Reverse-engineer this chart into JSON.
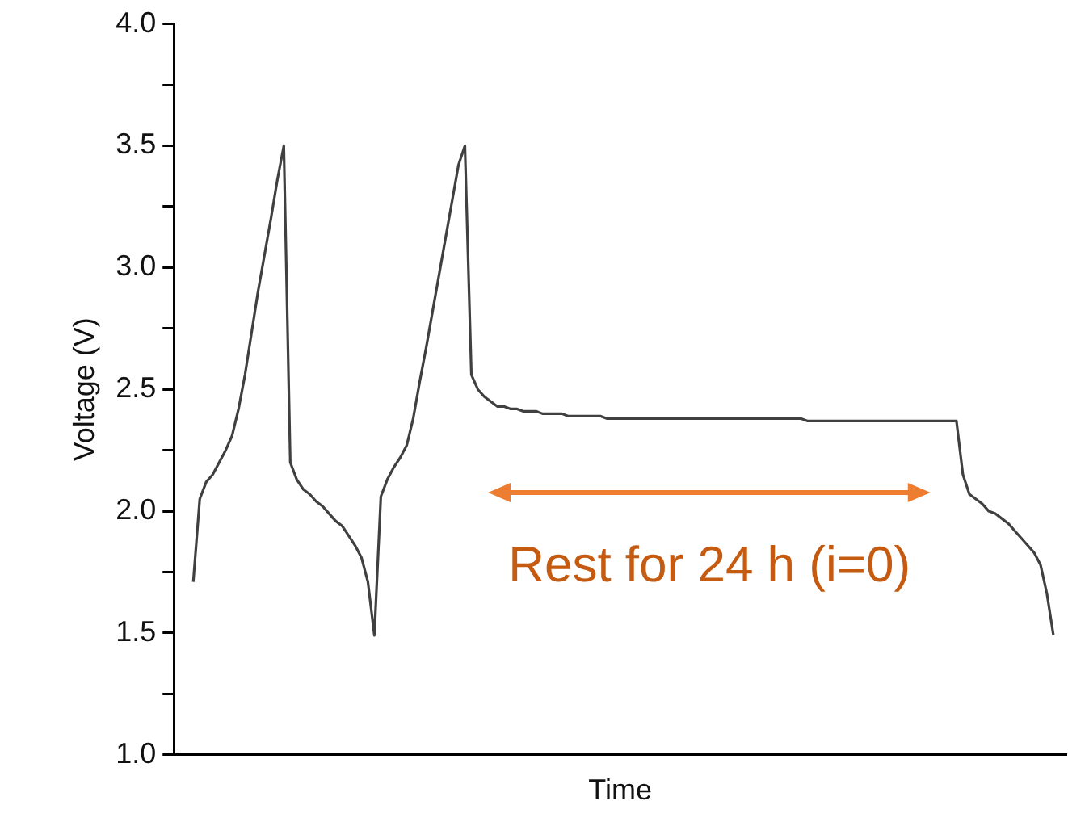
{
  "chart_data": {
    "type": "line",
    "xlabel": "Time",
    "ylabel": "Voltage (V)",
    "categories": [
      null,
      null,
      null,
      null,
      null,
      null,
      null,
      null,
      null,
      null,
      null,
      null,
      null,
      null,
      null,
      null,
      null,
      null,
      null,
      null,
      null,
      null,
      null,
      null,
      null,
      null,
      null,
      null,
      null,
      null,
      null,
      null,
      null,
      null,
      null,
      null,
      null,
      null,
      null,
      null,
      null,
      null,
      null,
      null,
      null,
      null,
      null,
      null,
      null,
      null,
      null,
      null,
      null,
      null,
      null,
      null,
      null,
      null,
      null,
      null,
      null,
      null,
      null,
      null,
      null,
      null,
      null,
      null,
      null,
      null,
      null,
      null,
      null,
      null,
      null,
      null,
      null,
      null,
      null,
      null,
      null,
      null,
      null,
      null,
      null,
      null,
      null,
      null,
      null,
      null,
      null,
      null,
      null,
      null,
      null,
      null,
      null,
      null,
      null,
      null,
      null,
      null,
      null,
      null,
      null,
      null,
      null,
      null,
      null,
      null,
      null,
      null,
      null,
      null,
      null,
      null,
      null,
      null,
      null,
      null,
      null,
      null,
      null,
      null,
      null,
      null,
      null,
      null,
      null,
      null,
      null,
      null,
      null,
      null,
      null,
      null,
      null,
      null,
      null
    ],
    "series": [
      {
        "color": "#404040",
        "values": [
          null,
          null,
          null,
          1.71,
          2.05,
          2.12,
          2.15,
          2.2,
          2.25,
          2.31,
          2.42,
          2.56,
          2.73,
          2.9,
          3.05,
          3.2,
          3.36,
          3.5,
          2.2,
          2.13,
          2.09,
          2.07,
          2.04,
          2.02,
          1.99,
          1.96,
          1.94,
          1.9,
          1.86,
          1.81,
          1.71,
          1.49,
          2.06,
          2.13,
          2.18,
          2.22,
          2.27,
          2.38,
          2.53,
          2.67,
          2.82,
          2.97,
          3.12,
          3.27,
          3.42,
          3.5,
          2.56,
          2.5,
          2.47,
          2.45,
          2.43,
          2.43,
          2.42,
          2.42,
          2.41,
          2.41,
          2.41,
          2.4,
          2.4,
          2.4,
          2.4,
          2.39,
          2.39,
          2.39,
          2.39,
          2.39,
          2.39,
          2.38,
          2.38,
          2.38,
          2.38,
          2.38,
          2.38,
          2.38,
          2.38,
          2.38,
          2.38,
          2.38,
          2.38,
          2.38,
          2.38,
          2.38,
          2.38,
          2.38,
          2.38,
          2.38,
          2.38,
          2.38,
          2.38,
          2.38,
          2.38,
          2.38,
          2.38,
          2.38,
          2.38,
          2.38,
          2.38,
          2.38,
          2.37,
          2.37,
          2.37,
          2.37,
          2.37,
          2.37,
          2.37,
          2.37,
          2.37,
          2.37,
          2.37,
          2.37,
          2.37,
          2.37,
          2.37,
          2.37,
          2.37,
          2.37,
          2.37,
          2.37,
          2.37,
          2.37,
          2.37,
          2.37,
          2.15,
          2.07,
          2.05,
          2.03,
          2.0,
          1.99,
          1.97,
          1.95,
          1.92,
          1.89,
          1.86,
          1.83,
          1.78,
          1.66,
          1.49,
          null,
          null
        ]
      }
    ],
    "ylim": [
      1.0,
      4.0
    ],
    "yticks": [
      {
        "value": 1,
        "label": "1.0"
      },
      {
        "value": 1.25,
        "label": null
      },
      1.5,
      {
        "value": 1.75,
        "label": null
      },
      {
        "value": 2,
        "label": "2.0"
      },
      {
        "value": 2.25,
        "label": null
      },
      2.5,
      {
        "value": 2.75,
        "label": null
      },
      {
        "value": 3,
        "label": "3.0"
      },
      {
        "value": 3.25,
        "label": null
      },
      3.5,
      {
        "value": 3.75,
        "label": null
      },
      {
        "value": 4,
        "label": "4.0"
      }
    ],
    "tick_labels": "y",
    "grid": false,
    "legend": false,
    "marker": "none",
    "line_style": "solid",
    "annotations": [
      "Rest for 24 h (i=0)"
    ]
  }
}
